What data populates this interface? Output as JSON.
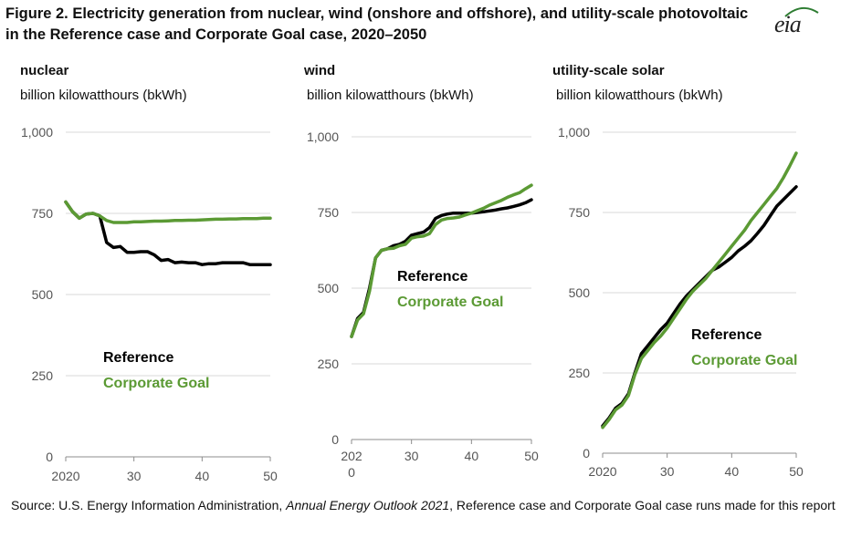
{
  "figure": {
    "title": "Figure 2. Electricity generation from nuclear, wind (onshore and offshore), and utility-scale photovoltaic in the Reference case and Corporate Goal case, 2020–2050",
    "logo_text": "eia",
    "source_prefix": "Source: U.S. Energy Information Administration, ",
    "source_italic": "Annual Energy Outlook 2021",
    "source_suffix": ", Reference case and Corporate Goal case runs made for this report"
  },
  "colors": {
    "reference": "#000000",
    "corporate_goal": "#5b9a34",
    "grid": "#d9d9d9"
  },
  "chart_data": [
    {
      "type": "line",
      "title": "nuclear",
      "ylabel": "billion kilowatthours (bkWh)",
      "xlabel": "",
      "ylim": [
        0,
        1000
      ],
      "xlim": [
        2020,
        2050
      ],
      "yticks": [
        "0",
        "250",
        "500",
        "750",
        "1,000"
      ],
      "xticks": [
        "2020",
        "30",
        "40",
        "50"
      ],
      "grid": true,
      "legend": {
        "reference": "Reference",
        "corporate_goal": "Corporate Goal"
      },
      "x": [
        2020,
        2021,
        2022,
        2023,
        2024,
        2025,
        2026,
        2027,
        2028,
        2029,
        2030,
        2031,
        2032,
        2033,
        2034,
        2035,
        2036,
        2037,
        2038,
        2039,
        2040,
        2041,
        2042,
        2043,
        2044,
        2045,
        2046,
        2047,
        2048,
        2049,
        2050
      ],
      "series": [
        {
          "name": "Reference",
          "values": [
            785,
            755,
            735,
            748,
            750,
            742,
            660,
            645,
            648,
            630,
            630,
            632,
            632,
            622,
            605,
            608,
            598,
            600,
            598,
            598,
            592,
            595,
            595,
            598,
            598,
            598,
            598,
            592,
            592,
            592,
            592
          ]
        },
        {
          "name": "Corporate Goal",
          "values": [
            785,
            755,
            735,
            748,
            750,
            742,
            728,
            722,
            722,
            722,
            724,
            724,
            725,
            726,
            726,
            727,
            728,
            728,
            729,
            729,
            730,
            731,
            732,
            732,
            733,
            733,
            734,
            734,
            734,
            735,
            735
          ]
        }
      ]
    },
    {
      "type": "line",
      "title": "wind",
      "ylabel": "billion kilowatthours (bkWh)",
      "xlabel": "",
      "ylim": [
        0,
        1000
      ],
      "xlim": [
        2020,
        2050
      ],
      "yticks": [
        "0",
        "250",
        "500",
        "750",
        "1,000"
      ],
      "xticks": [
        "202\n0",
        "30",
        "40",
        "50"
      ],
      "grid": true,
      "legend": {
        "reference": "Reference",
        "corporate_goal": "Corporate Goal"
      },
      "x": [
        2020,
        2021,
        2022,
        2023,
        2024,
        2025,
        2026,
        2027,
        2028,
        2029,
        2030,
        2031,
        2032,
        2033,
        2034,
        2035,
        2036,
        2037,
        2038,
        2039,
        2040,
        2041,
        2042,
        2043,
        2044,
        2045,
        2046,
        2047,
        2048,
        2049,
        2050
      ],
      "series": [
        {
          "name": "Reference",
          "values": [
            340,
            400,
            420,
            500,
            600,
            625,
            630,
            640,
            645,
            655,
            675,
            680,
            685,
            700,
            730,
            740,
            745,
            748,
            748,
            748,
            748,
            750,
            752,
            755,
            758,
            762,
            765,
            770,
            775,
            782,
            792
          ]
        },
        {
          "name": "Corporate Goal",
          "values": [
            340,
            395,
            415,
            490,
            600,
            625,
            630,
            632,
            640,
            645,
            665,
            670,
            672,
            680,
            710,
            725,
            730,
            732,
            735,
            742,
            748,
            756,
            764,
            774,
            782,
            790,
            800,
            808,
            815,
            828,
            840
          ]
        }
      ]
    },
    {
      "type": "line",
      "title": "utility-scale solar",
      "ylabel": "billion kilowatthours (bkWh)",
      "xlabel": "",
      "ylim": [
        0,
        1000
      ],
      "xlim": [
        2020,
        2050
      ],
      "yticks": [
        "0",
        "250",
        "500",
        "750",
        "1,000"
      ],
      "xticks": [
        "2020",
        "30",
        "40",
        "50"
      ],
      "grid": true,
      "legend": {
        "reference": "Reference",
        "corporate_goal": "Corporate Goal"
      },
      "x": [
        2020,
        2021,
        2022,
        2023,
        2024,
        2025,
        2026,
        2027,
        2028,
        2029,
        2030,
        2031,
        2032,
        2033,
        2034,
        2035,
        2036,
        2037,
        2038,
        2039,
        2040,
        2041,
        2042,
        2043,
        2044,
        2045,
        2046,
        2047,
        2048,
        2049,
        2050
      ],
      "series": [
        {
          "name": "Reference",
          "values": [
            85,
            110,
            140,
            155,
            185,
            250,
            310,
            335,
            360,
            385,
            405,
            435,
            465,
            490,
            510,
            530,
            550,
            570,
            580,
            595,
            610,
            630,
            645,
            662,
            685,
            710,
            740,
            770,
            790,
            810,
            830
          ]
        },
        {
          "name": "Corporate Goal",
          "values": [
            80,
            105,
            135,
            150,
            180,
            245,
            295,
            320,
            345,
            365,
            390,
            420,
            450,
            480,
            505,
            525,
            545,
            570,
            595,
            620,
            645,
            670,
            695,
            725,
            750,
            775,
            800,
            825,
            858,
            895,
            935
          ]
        }
      ]
    }
  ]
}
